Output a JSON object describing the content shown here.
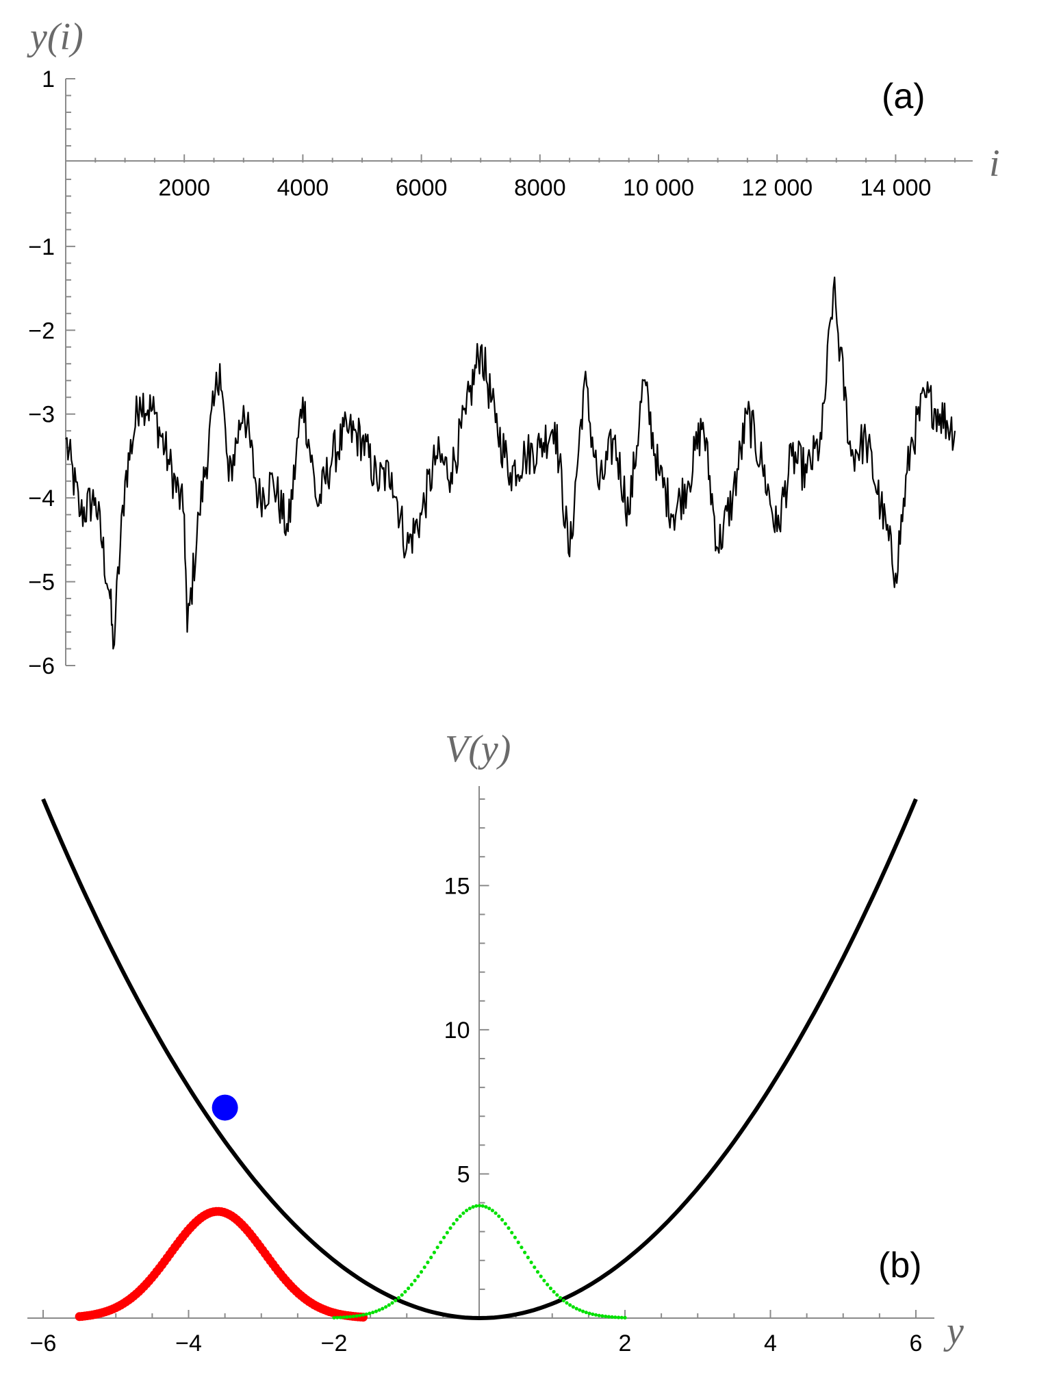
{
  "chart_data": [
    {
      "type": "line",
      "panel_label": "(a)",
      "xlabel": "i",
      "ylabel": "y(i)",
      "xlim": [
        0,
        15000
      ],
      "ylim": [
        -6,
        1
      ],
      "x_ticks": [
        {
          "value": 2000,
          "label": "2000"
        },
        {
          "value": 4000,
          "label": "4000"
        },
        {
          "value": 6000,
          "label": "6000"
        },
        {
          "value": 8000,
          "label": "8000"
        },
        {
          "value": 10000,
          "label": "10 000"
        },
        {
          "value": 12000,
          "label": "12 000"
        },
        {
          "value": 14000,
          "label": "14 000"
        }
      ],
      "y_ticks": [
        {
          "value": 1,
          "label": "1"
        },
        {
          "value": -1,
          "label": "−1"
        },
        {
          "value": -2,
          "label": "−2"
        },
        {
          "value": -3,
          "label": "−3"
        },
        {
          "value": -4,
          "label": "−4"
        },
        {
          "value": -5,
          "label": "−5"
        },
        {
          "value": -6,
          "label": "−6"
        }
      ],
      "series": [
        {
          "color": "#000000",
          "x": [
            0,
            250,
            500,
            750,
            800,
            1000,
            1250,
            1500,
            1750,
            2000,
            2050,
            2250,
            2500,
            2600,
            2750,
            3000,
            3250,
            3500,
            3750,
            4000,
            4250,
            4500,
            4750,
            5000,
            5250,
            5500,
            5750,
            6000,
            6250,
            6500,
            6750,
            7000,
            7250,
            7500,
            7750,
            8000,
            8250,
            8500,
            8750,
            9000,
            9250,
            9500,
            9750,
            10000,
            10250,
            10500,
            10750,
            11000,
            11250,
            11500,
            11750,
            12000,
            12250,
            12500,
            12750,
            12950,
            13250,
            13500,
            13750,
            14000,
            14250,
            14500,
            14750,
            15000
          ],
          "y": [
            -3.3,
            -4.2,
            -4.0,
            -5.2,
            -5.8,
            -3.8,
            -2.8,
            -3.0,
            -3.6,
            -4.2,
            -5.6,
            -4.2,
            -2.9,
            -2.4,
            -3.8,
            -2.9,
            -4.0,
            -3.8,
            -4.4,
            -2.8,
            -4.1,
            -3.5,
            -3.2,
            -3.3,
            -3.8,
            -3.7,
            -4.6,
            -4.2,
            -3.5,
            -3.7,
            -3.0,
            -2.2,
            -3.1,
            -3.7,
            -3.5,
            -3.4,
            -3.1,
            -4.7,
            -2.6,
            -3.9,
            -3.3,
            -4.2,
            -2.6,
            -3.7,
            -4.2,
            -3.8,
            -3.1,
            -4.6,
            -4.0,
            -3.0,
            -3.6,
            -4.4,
            -3.5,
            -3.7,
            -3.3,
            -1.5,
            -3.5,
            -3.3,
            -4.1,
            -4.9,
            -3.4,
            -2.8,
            -3.0,
            -3.2
          ]
        }
      ]
    },
    {
      "type": "line",
      "panel_label": "(b)",
      "xlabel": "y",
      "ylabel": "V(y)",
      "xlim": [
        -6,
        6
      ],
      "ylim": [
        0,
        18
      ],
      "x_ticks": [
        {
          "value": -6,
          "label": "−6"
        },
        {
          "value": -4,
          "label": "−4"
        },
        {
          "value": -2,
          "label": "−2"
        },
        {
          "value": 2,
          "label": "2"
        },
        {
          "value": 4,
          "label": "4"
        },
        {
          "value": 6,
          "label": "6"
        }
      ],
      "y_ticks": [
        {
          "value": 5,
          "label": "5"
        },
        {
          "value": 10,
          "label": "10"
        },
        {
          "value": 15,
          "label": "15"
        }
      ],
      "series": [
        {
          "kind": "curve",
          "formula": "V(y) = y^2 / 2",
          "color": "#000000",
          "x_range": [
            -6,
            6
          ]
        },
        {
          "kind": "gaussian",
          "color": "#ff0000",
          "mean": -3.6,
          "sigma": 0.65,
          "amplitude": 3.7,
          "x_range": [
            -5.5,
            -1.6
          ],
          "marker": "dot-large"
        },
        {
          "kind": "gaussian",
          "color": "#00e000",
          "mean": 0.0,
          "sigma": 0.6,
          "amplitude": 3.9,
          "x_range": [
            -2.0,
            2.0
          ],
          "marker": "dot-small"
        },
        {
          "kind": "point",
          "color": "#0000ff",
          "x": -3.5,
          "y": 7.3
        }
      ]
    }
  ]
}
